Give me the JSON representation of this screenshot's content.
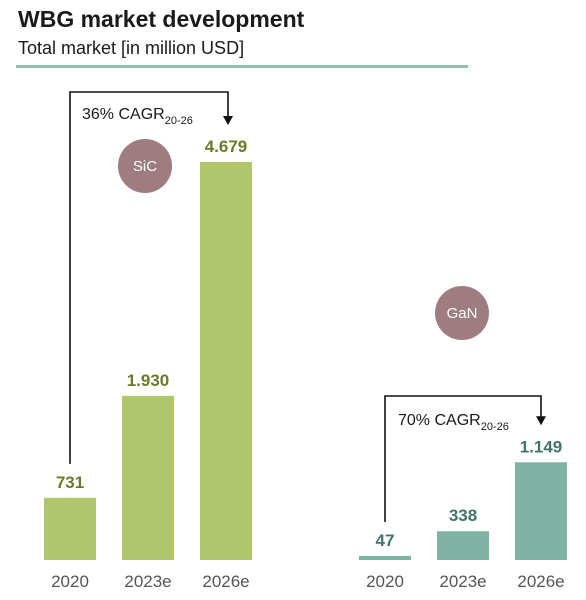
{
  "header": {
    "title": "WBG market development",
    "subtitle": "Total market [in million USD]"
  },
  "colors": {
    "sic_bar": "#b1c56b",
    "gan_bar": "#7fb3a3",
    "badge": "#9e7c7f",
    "rule": "#8fbfae"
  },
  "chart_data": [
    {
      "type": "bar",
      "group_label": "SiC",
      "categories": [
        "2020",
        "2023e",
        "2026e"
      ],
      "values": [
        731,
        1930,
        4679
      ],
      "value_labels": [
        "731",
        "1.930",
        "4.679"
      ],
      "cagr": {
        "text": "36% CAGR",
        "sub": "20-26"
      },
      "ylim": [
        0,
        4679
      ]
    },
    {
      "type": "bar",
      "group_label": "GaN",
      "categories": [
        "2020",
        "2023e",
        "2026e"
      ],
      "values": [
        47,
        338,
        1149
      ],
      "value_labels": [
        "47",
        "338",
        "1.149"
      ],
      "cagr": {
        "text": "70% CAGR",
        "sub": "20-26"
      },
      "ylim": [
        0,
        4679
      ]
    }
  ]
}
